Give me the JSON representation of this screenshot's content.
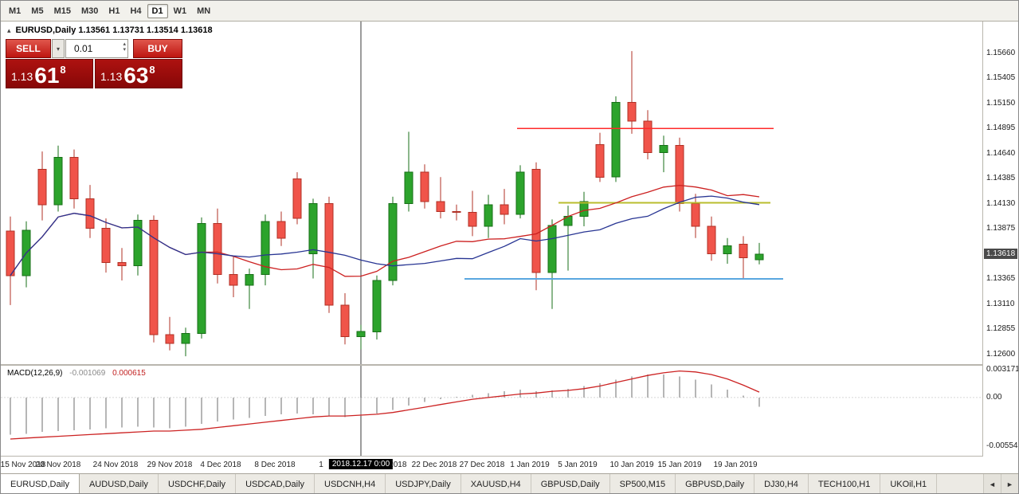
{
  "icons": {
    "collapse_triangle": "▴",
    "chevron_down": "▾",
    "spinner_up": "▴",
    "spinner_down": "▾",
    "scroll_left": "◄",
    "scroll_right": "►"
  },
  "toolbar": {
    "timeframes": [
      "M1",
      "M5",
      "M15",
      "M30",
      "H1",
      "H4",
      "D1",
      "W1",
      "MN"
    ],
    "active_timeframe": "D1"
  },
  "chart_header": {
    "title": "EURUSD,Daily 1.13561 1.13731 1.13514 1.13618"
  },
  "trade_panel": {
    "sell_label": "SELL",
    "buy_label": "BUY",
    "lot_value": "0.01",
    "sell_price": {
      "big": "1.13",
      "large": "61",
      "sup": "8"
    },
    "buy_price": {
      "big": "1.13",
      "large": "63",
      "sup": "8"
    }
  },
  "price_axis": {
    "labels": [
      "1.15660",
      "1.15405",
      "1.15150",
      "1.14895",
      "1.14640",
      "1.14385",
      "1.14130",
      "1.13875",
      "1.13365",
      "1.13110",
      "1.12855",
      "1.12600"
    ],
    "current_price_badge": "1.13618"
  },
  "macd_panel": {
    "name": "MACD(12,26,9)",
    "value_main": "-0.001069",
    "value_signal": "0.000615",
    "axis_labels": [
      "0.003171",
      "0.00",
      "-0.005543"
    ]
  },
  "time_axis": {
    "labels": [
      {
        "text": "15 Nov 2018",
        "i": 0.8
      },
      {
        "text": "20 Nov 2018",
        "i": 3
      },
      {
        "text": "24 Nov 2018",
        "i": 6.6
      },
      {
        "text": "29 Nov 2018",
        "i": 10
      },
      {
        "text": "4 Dec 2018",
        "i": 13.2
      },
      {
        "text": "8 Dec 2018",
        "i": 16.6
      },
      {
        "text": "1",
        "i": 19.5
      },
      {
        "text": "Dec 2018",
        "i": 23.8
      },
      {
        "text": "22 Dec 2018",
        "i": 26.6
      },
      {
        "text": "27 Dec 2018",
        "i": 29.6
      },
      {
        "text": "1 Jan 2019",
        "i": 32.6
      },
      {
        "text": "5 Jan 2019",
        "i": 35.6
      },
      {
        "text": "10 Jan 2019",
        "i": 39
      },
      {
        "text": "15 Jan 2019",
        "i": 42
      },
      {
        "text": "19 Jan 2019",
        "i": 45.5
      }
    ],
    "vline_badge": "2018.12.17 0:00"
  },
  "chart_data": {
    "type": "candlestick",
    "symbol": "EURUSD",
    "timeframe": "Daily",
    "ohlc_current": {
      "open": 1.13561,
      "high": 1.13731,
      "low": 1.13514,
      "close": 1.13618
    },
    "price_range": [
      1.125,
      1.1598
    ],
    "dates": [
      "2018.11.15",
      "2018.11.16",
      "2018.11.19",
      "2018.11.20",
      "2018.11.21",
      "2018.11.22",
      "2018.11.23",
      "2018.11.26",
      "2018.11.27",
      "2018.11.28",
      "2018.11.29",
      "2018.11.30",
      "2018.12.03",
      "2018.12.04",
      "2018.12.05",
      "2018.12.06",
      "2018.12.07",
      "2018.12.10",
      "2018.12.11",
      "2018.12.12",
      "2018.12.13",
      "2018.12.14",
      "2018.12.17",
      "2018.12.18",
      "2018.12.19",
      "2018.12.20",
      "2018.12.21",
      "2018.12.24",
      "2018.12.25",
      "2018.12.26",
      "2018.12.27",
      "2018.12.28",
      "2018.12.31",
      "2019.01.02",
      "2019.01.03",
      "2019.01.04",
      "2019.01.07",
      "2019.01.08",
      "2019.01.09",
      "2019.01.10",
      "2019.01.11",
      "2019.01.14",
      "2019.01.15",
      "2019.01.16",
      "2019.01.17",
      "2019.01.18",
      "2019.01.21",
      "2019.01.22"
    ],
    "candles": [
      [
        1.1385,
        1.14,
        1.131,
        1.134
      ],
      [
        1.134,
        1.1395,
        1.1328,
        1.1386
      ],
      [
        1.1448,
        1.1466,
        1.1396,
        1.1412
      ],
      [
        1.1412,
        1.1472,
        1.1405,
        1.146
      ],
      [
        1.146,
        1.1468,
        1.1408,
        1.1418
      ],
      [
        1.1418,
        1.1432,
        1.1378,
        1.1388
      ],
      [
        1.1388,
        1.1398,
        1.1343,
        1.1353
      ],
      [
        1.1353,
        1.1368,
        1.1335,
        1.135
      ],
      [
        1.135,
        1.1402,
        1.134,
        1.1396
      ],
      [
        1.1396,
        1.1401,
        1.1272,
        1.128
      ],
      [
        1.128,
        1.1298,
        1.1264,
        1.1271
      ],
      [
        1.1271,
        1.1287,
        1.1258,
        1.1281
      ],
      [
        1.1281,
        1.1399,
        1.1276,
        1.1393
      ],
      [
        1.1393,
        1.1408,
        1.1332,
        1.1341
      ],
      [
        1.1341,
        1.1359,
        1.1318,
        1.133
      ],
      [
        1.133,
        1.1347,
        1.1306,
        1.1341
      ],
      [
        1.1341,
        1.1402,
        1.133,
        1.1395
      ],
      [
        1.1395,
        1.1405,
        1.137,
        1.1378
      ],
      [
        1.1438,
        1.1445,
        1.1392,
        1.1398
      ],
      [
        1.1362,
        1.1418,
        1.1337,
        1.1413
      ],
      [
        1.1413,
        1.142,
        1.1302,
        1.131
      ],
      [
        1.131,
        1.1322,
        1.127,
        1.1278
      ],
      [
        1.1278,
        1.129,
        1.1265,
        1.1283
      ],
      [
        1.1283,
        1.134,
        1.1275,
        1.1335
      ],
      [
        1.1335,
        1.142,
        1.133,
        1.1413
      ],
      [
        1.1413,
        1.1486,
        1.1405,
        1.1445
      ],
      [
        1.1445,
        1.1453,
        1.1408,
        1.1415
      ],
      [
        1.1415,
        1.144,
        1.1398,
        1.1405
      ],
      [
        1.1405,
        1.1412,
        1.1396,
        1.1404
      ],
      [
        1.1404,
        1.1426,
        1.138,
        1.139
      ],
      [
        1.139,
        1.1422,
        1.1378,
        1.1412
      ],
      [
        1.1412,
        1.1428,
        1.1392,
        1.1402
      ],
      [
        1.1402,
        1.1452,
        1.1398,
        1.1445
      ],
      [
        1.1448,
        1.1455,
        1.1325,
        1.1343
      ],
      [
        1.1343,
        1.1397,
        1.1306,
        1.1391
      ],
      [
        1.1391,
        1.1411,
        1.1345,
        1.14
      ],
      [
        1.14,
        1.1425,
        1.139,
        1.1415
      ],
      [
        1.1473,
        1.1485,
        1.1435,
        1.144
      ],
      [
        1.144,
        1.1522,
        1.1435,
        1.1516
      ],
      [
        1.1516,
        1.1568,
        1.1484,
        1.1497
      ],
      [
        1.1497,
        1.1508,
        1.1458,
        1.1465
      ],
      [
        1.1465,
        1.1482,
        1.1445,
        1.1472
      ],
      [
        1.1472,
        1.148,
        1.1405,
        1.1413
      ],
      [
        1.1413,
        1.1423,
        1.1378,
        1.139
      ],
      [
        1.139,
        1.14,
        1.1355,
        1.1362
      ],
      [
        1.1362,
        1.1378,
        1.1352,
        1.137
      ],
      [
        1.1372,
        1.138,
        1.1337,
        1.1358
      ],
      [
        1.13561,
        1.13731,
        1.13514,
        1.13618
      ]
    ],
    "ma_fast": {
      "color": "#cc2020",
      "period": 13
    },
    "ma_slow": {
      "color": "#283593",
      "period": 21
    },
    "hlines": [
      {
        "price": 1.14895,
        "color": "#ff2a2a",
        "from": 31.8,
        "to": 47.9,
        "width": 1.4
      },
      {
        "price": 1.1414,
        "color": "#b9bd2e",
        "from": 34.4,
        "to": 47.7,
        "width": 2
      },
      {
        "price": 1.13365,
        "color": "#5aa7e0",
        "from": 28.5,
        "to": 48.5,
        "width": 2
      }
    ],
    "vline": {
      "index": 22,
      "date": "2018.12.17 0:00"
    },
    "macd": {
      "params": "12,26,9",
      "range": [
        -0.0066,
        0.0036
      ],
      "histogram": [
        -0.0042,
        -0.0041,
        -0.0039,
        -0.0038,
        -0.0037,
        -0.0036,
        -0.0035,
        -0.0034,
        -0.0033,
        -0.0034,
        -0.0035,
        -0.0033,
        -0.003,
        -0.0027,
        -0.0025,
        -0.0023,
        -0.0021,
        -0.0019,
        -0.0018,
        -0.0019,
        -0.0021,
        -0.0022,
        -0.0021,
        -0.0018,
        -0.0014,
        -0.0009,
        -0.0005,
        -0.0002,
        0.0001,
        0.0003,
        0.0005,
        0.0007,
        0.0009,
        0.0007,
        0.0008,
        0.001,
        0.0013,
        0.0016,
        0.002,
        0.0024,
        0.0026,
        0.0026,
        0.0024,
        0.002,
        0.0015,
        0.0009,
        0.0002,
        -0.001069
      ],
      "signal": [
        -0.0047,
        -0.0046,
        -0.0045,
        -0.0044,
        -0.0043,
        -0.0042,
        -0.0041,
        -0.004,
        -0.0039,
        -0.0038,
        -0.0038,
        -0.0037,
        -0.0036,
        -0.0034,
        -0.0032,
        -0.003,
        -0.0028,
        -0.0026,
        -0.0024,
        -0.0022,
        -0.0021,
        -0.0021,
        -0.002,
        -0.0019,
        -0.0017,
        -0.0014,
        -0.0011,
        -0.0008,
        -0.0005,
        -0.0002,
        0.0,
        0.0002,
        0.0004,
        0.0005,
        0.0007,
        0.0008,
        0.001,
        0.0013,
        0.0017,
        0.0021,
        0.0025,
        0.0028,
        0.003,
        0.0029,
        0.0026,
        0.0021,
        0.0014,
        0.000615
      ],
      "current": {
        "macd": -0.001069,
        "signal": 0.000615
      }
    }
  },
  "tabs": {
    "items": [
      "EURUSD,Daily",
      "AUDUSD,Daily",
      "USDCHF,Daily",
      "USDCAD,Daily",
      "USDCNH,H4",
      "USDJPY,Daily",
      "XAUUSD,H4",
      "GBPUSD,Daily",
      "SP500,M15",
      "GBPUSD,Daily",
      "DJ30,H4",
      "TECH100,H1",
      "UKOil,H1"
    ],
    "active_index": 0
  }
}
